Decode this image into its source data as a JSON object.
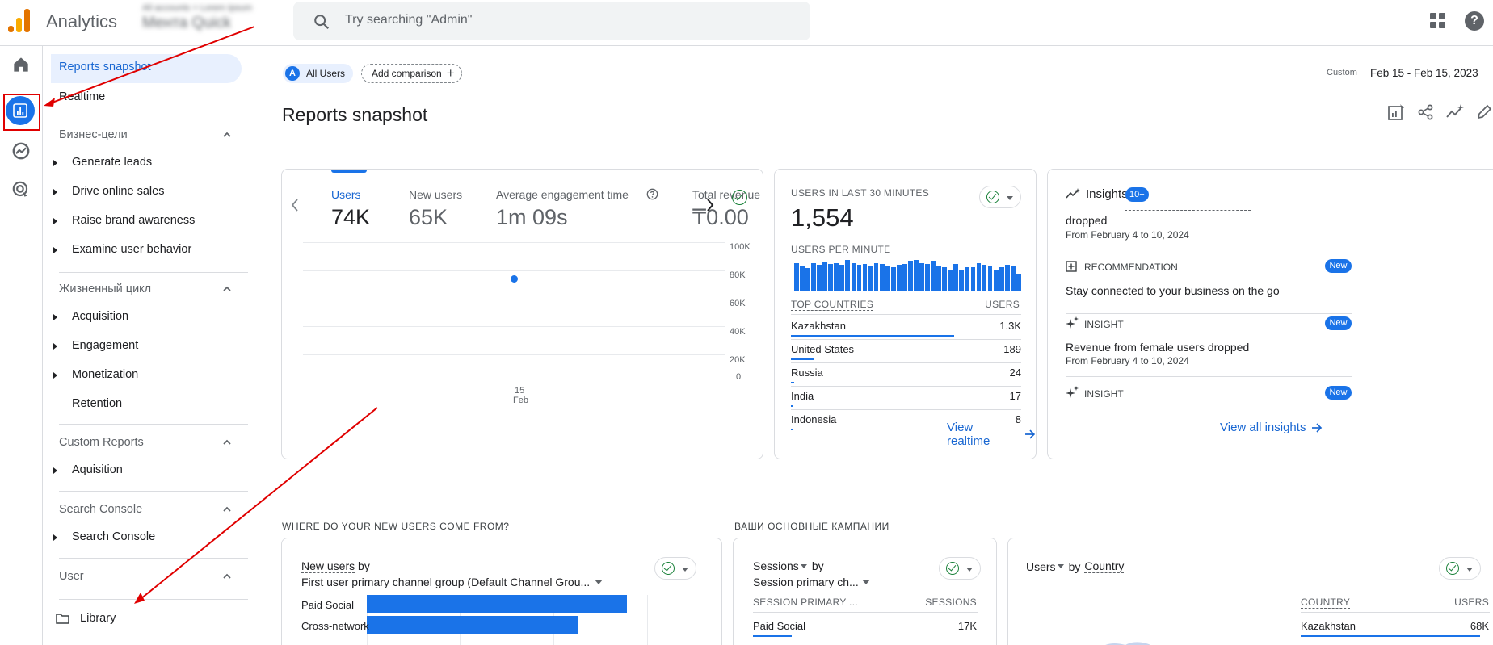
{
  "header": {
    "app_title": "Analytics",
    "account_line1": "All accounts > Lorem Ipsum",
    "account_line2": "Мента Quick",
    "search_placeholder": "Try searching \"Admin\""
  },
  "nav": {
    "reports_snapshot": "Reports snapshot",
    "realtime": "Realtime",
    "sections": [
      {
        "title": "Бизнес-цели",
        "items": [
          "Generate leads",
          "Drive online sales",
          "Raise brand awareness",
          "Examine user behavior"
        ]
      },
      {
        "title": "Жизненный цикл",
        "items": [
          "Acquisition",
          "Engagement",
          "Monetization",
          "Retention"
        ]
      },
      {
        "title": "Custom Reports",
        "items": [
          "Aquisition"
        ]
      },
      {
        "title": "Search Console",
        "items": [
          "Search Console"
        ]
      },
      {
        "title": "User",
        "items": []
      }
    ],
    "library": "Library"
  },
  "toolbar": {
    "segment_badge": "A",
    "segment_label": "All Users",
    "add_comparison": "Add comparison",
    "date_label": "Custom",
    "date_range": "Feb 15 - Feb 15, 2023"
  },
  "page_title": "Reports snapshot",
  "metrics_card": {
    "metrics": [
      {
        "label": "Users",
        "value": "74K"
      },
      {
        "label": "New users",
        "value": "65K"
      },
      {
        "label": "Average engagement time",
        "value": "1m 09s"
      },
      {
        "label": "Total revenue",
        "value": "₸0.00"
      }
    ],
    "y_ticks": [
      "100K",
      "80K",
      "60K",
      "40K",
      "20K",
      "0"
    ],
    "x_tick_day": "15",
    "x_tick_month": "Feb"
  },
  "chart_data": {
    "type": "scatter",
    "title": "Users",
    "x": [
      "15 Feb"
    ],
    "values": [
      74000
    ],
    "ylim": [
      0,
      100000
    ],
    "y_ticks": [
      0,
      20000,
      40000,
      60000,
      80000,
      100000
    ]
  },
  "realtime_card": {
    "title": "USERS IN LAST 30 MINUTES",
    "value": "1,554",
    "per_minute_label": "USERS PER MINUTE",
    "per_minute_values": [
      30,
      26,
      24,
      30,
      28,
      31,
      29,
      30,
      28,
      33,
      30,
      28,
      29,
      27,
      30,
      29,
      26,
      25,
      28,
      29,
      32,
      33,
      30,
      29,
      32,
      27,
      25,
      23,
      29,
      23,
      25,
      25,
      30,
      28,
      26,
      23,
      25,
      28,
      27,
      17
    ],
    "countries_header": "TOP COUNTRIES",
    "users_header": "USERS",
    "countries": [
      {
        "name": "Kazakhstan",
        "value": "1.3K",
        "fraction": 0.71
      },
      {
        "name": "United States",
        "value": "189",
        "fraction": 0.1
      },
      {
        "name": "Russia",
        "value": "24",
        "fraction": 0.013
      },
      {
        "name": "India",
        "value": "17",
        "fraction": 0.009
      },
      {
        "name": "Indonesia",
        "value": "8",
        "fraction": 0.005
      }
    ],
    "view_link": "View realtime"
  },
  "insights_card": {
    "title": "Insights",
    "count_badge": "10+",
    "item0_text": "dropped",
    "item0_sub": "From February 4 to 10, 2024",
    "rec_label": "RECOMMENDATION",
    "rec_text": "Stay connected to your business on the go",
    "insight_label": "INSIGHT",
    "insight_text": "Revenue from female users dropped",
    "insight_sub": "From February 4 to 10, 2024",
    "insight2_label": "INSIGHT",
    "new_badge": "New",
    "view_link": "View all insights"
  },
  "acquisition": {
    "section_title": "WHERE DO YOUR NEW USERS COME FROM?",
    "metric": "New users",
    "by": "by",
    "dimension": "First user primary channel group (Default Channel Grou...",
    "bars": [
      {
        "label": "Paid Social",
        "fraction": 1.0
      },
      {
        "label": "Cross-network",
        "fraction": 0.81
      }
    ]
  },
  "campaigns": {
    "section_title": "ВАШИ ОСНОВНЫЕ КАМПАНИИ",
    "metric": "Sessions",
    "by": "by",
    "dimension": "Session primary ch...",
    "col1": "SESSION PRIMARY ...",
    "col2": "SESSIONS",
    "rows": [
      {
        "name": "Paid Social",
        "value": "17K"
      }
    ]
  },
  "country_card": {
    "metric": "Users",
    "by": "by",
    "dimension": "Country",
    "col1": "COUNTRY",
    "col2": "USERS",
    "rows": [
      {
        "name": "Kazakhstan",
        "value": "68K"
      }
    ]
  },
  "colors": {
    "accent": "#1a73e8",
    "annotation": "#e00000",
    "ga_orange": "#f9ab00",
    "ga_dark_orange": "#e37400"
  }
}
